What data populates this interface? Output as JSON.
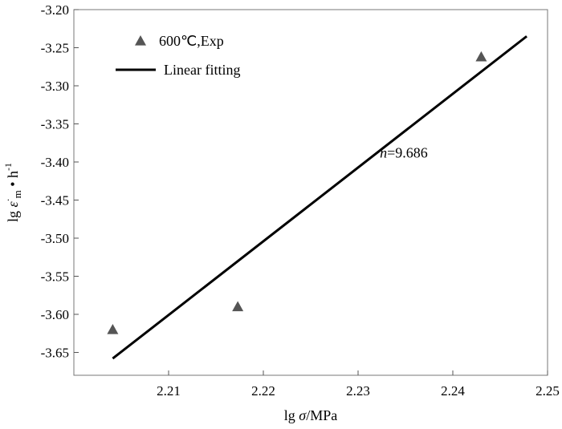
{
  "chart_data": {
    "type": "scatter",
    "xlabel": {
      "prefix": "lg ",
      "symbol": "σ",
      "suffix": "/MPa"
    },
    "ylabel": {
      "prefix": "lg ",
      "symbol": "ε",
      "sup": "·",
      "sub": "m",
      "suffix": " • h",
      "sup2": "-1"
    },
    "xlim": [
      2.2,
      2.25
    ],
    "ylim": [
      -3.68,
      -3.2
    ],
    "xticks": [
      2.21,
      2.22,
      2.23,
      2.24,
      2.25
    ],
    "xtick_labels": [
      "2.21",
      "2.22",
      "2.23",
      "2.24",
      "2.25"
    ],
    "yticks": [
      -3.65,
      -3.6,
      -3.55,
      -3.5,
      -3.45,
      -3.4,
      -3.35,
      -3.3,
      -3.25,
      -3.2
    ],
    "ytick_labels": [
      "-3.65",
      "-3.60",
      "-3.55",
      "-3.50",
      "-3.45",
      "-3.40",
      "-3.35",
      "-3.30",
      "-3.25",
      "-3.20"
    ],
    "grid": false,
    "legend_position": "top-left",
    "series": [
      {
        "name": "600℃,Exp",
        "kind": "scatter",
        "marker": "triangle",
        "color": "#555555",
        "x": [
          2.2041,
          2.2173,
          2.243
        ],
        "y": [
          -3.62,
          -3.59,
          -3.262
        ]
      },
      {
        "name": "Linear fitting",
        "kind": "line",
        "color": "#000000",
        "x": [
          2.2041,
          2.2478
        ],
        "y": [
          -3.658,
          -3.235
        ]
      }
    ],
    "annotation": {
      "italic": "n",
      "text": "=9.686",
      "x": 2.2323,
      "y": -3.394
    }
  }
}
